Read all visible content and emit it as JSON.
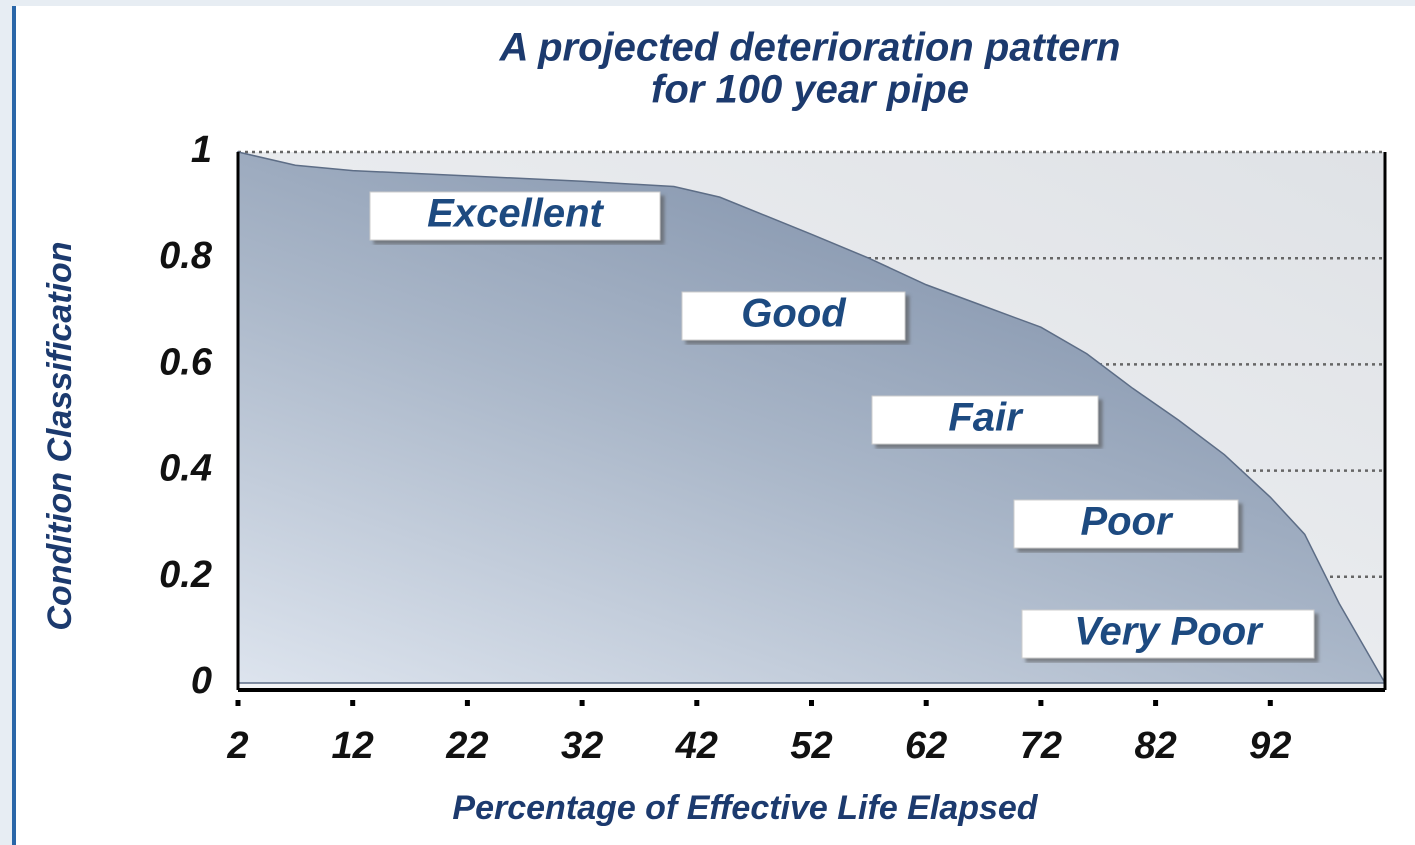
{
  "chart_data": {
    "type": "area",
    "title": [
      "A projected deterioration pattern",
      "for 100 year pipe"
    ],
    "x_label": "Percentage of Effective Life Elapsed",
    "y_label": "Condition Classification",
    "x": [
      2,
      7,
      12,
      22,
      32,
      40,
      44,
      48,
      52,
      57,
      62,
      67,
      72,
      76,
      80,
      84,
      88,
      92,
      95,
      98,
      102
    ],
    "series": [
      {
        "color": "#7f90aa",
        "values": [
          1.0,
          0.975,
          0.965,
          0.955,
          0.945,
          0.935,
          0.915,
          0.88,
          0.845,
          0.8,
          0.75,
          0.71,
          0.67,
          0.62,
          0.555,
          0.495,
          0.43,
          0.35,
          0.28,
          0.15,
          0
        ]
      }
    ],
    "xlim": [
      2,
      102
    ],
    "xticks": [
      2,
      12,
      22,
      32,
      42,
      52,
      62,
      72,
      82,
      92
    ],
    "ylim": [
      0,
      1
    ],
    "yticks": [
      0,
      0.2,
      0.4,
      0.6,
      0.8,
      1
    ],
    "grid": true,
    "annotations": [
      "Excellent",
      "Good",
      "Fair",
      "Poor",
      "Very Poor"
    ]
  }
}
